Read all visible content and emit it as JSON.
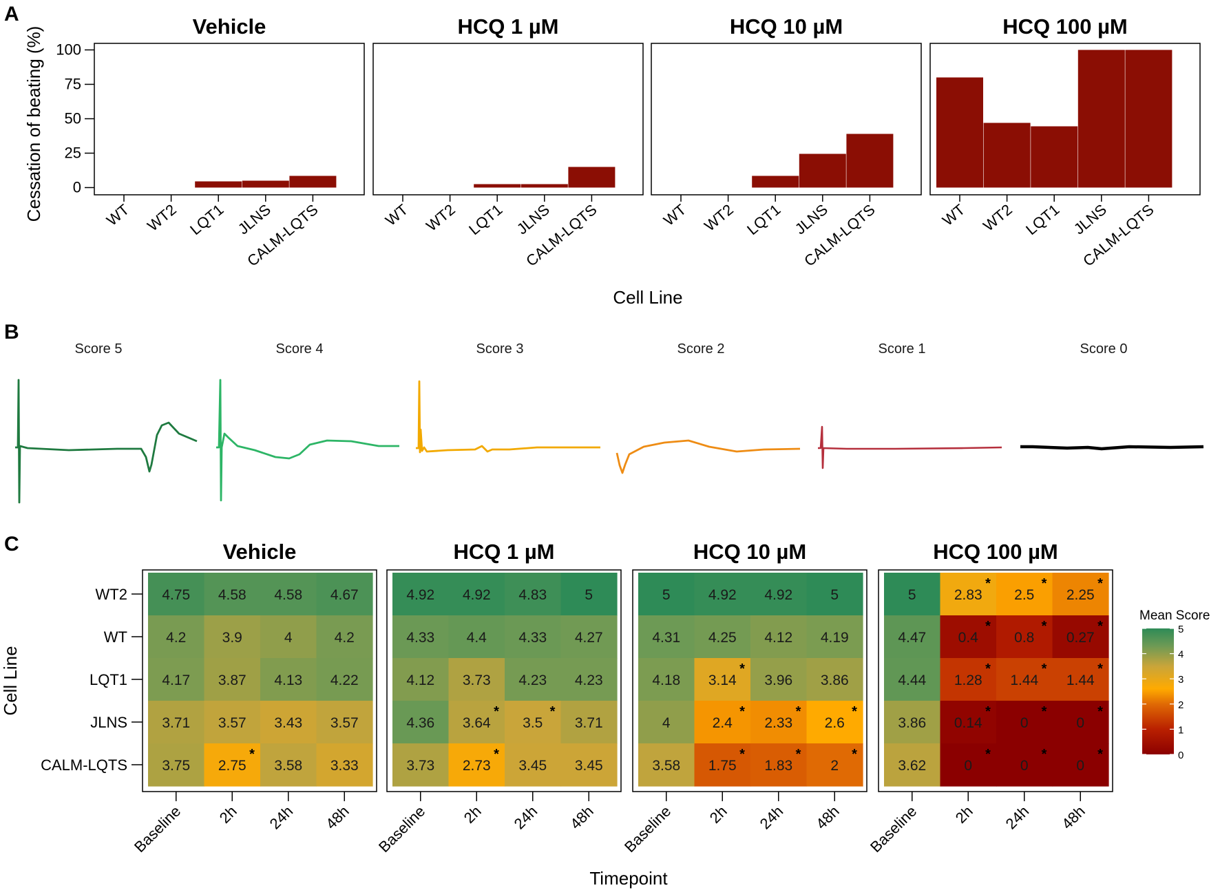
{
  "panel_labels": {
    "a": "A",
    "b": "B",
    "c": "C"
  },
  "chart_data": [
    {
      "type": "bar",
      "panel": "A",
      "facets": [
        "Vehicle",
        "HCQ 1 µM",
        "HCQ 10 µM",
        "HCQ 100 µM"
      ],
      "categories": [
        "WT",
        "WT2",
        "LQT1",
        "JLNS",
        "CALM-LQTS"
      ],
      "series": [
        {
          "name": "Vehicle",
          "values": [
            0,
            0,
            4.5,
            5,
            8.5
          ]
        },
        {
          "name": "HCQ 1 µM",
          "values": [
            0,
            0,
            2.5,
            2.5,
            15
          ]
        },
        {
          "name": "HCQ 10 µM",
          "values": [
            0,
            0,
            8.5,
            24.5,
            39
          ]
        },
        {
          "name": "HCQ 100 µM",
          "values": [
            80,
            47,
            44.5,
            100,
            100
          ]
        }
      ],
      "ylabel": "Cessation of beating (%)",
      "xlabel": "Cell Line",
      "ylim": [
        0,
        105
      ],
      "yticks": [
        0,
        25,
        50,
        75,
        100
      ],
      "bar_color": "#8B0E04"
    },
    {
      "type": "heatmap",
      "panel": "C",
      "facets": [
        "Vehicle",
        "HCQ 1 µM",
        "HCQ 10 µM",
        "HCQ 100 µM"
      ],
      "rows": [
        "WT2",
        "WT",
        "LQT1",
        "JLNS",
        "CALM-LQTS"
      ],
      "columns": [
        "Baseline",
        "2h",
        "24h",
        "48h"
      ],
      "xlabel": "Timepoint",
      "ylabel": "Cell Line",
      "legend_title": "Mean Score",
      "legend_ticks": [
        "5",
        "4",
        "3",
        "2",
        "1",
        "0"
      ],
      "value_range": [
        0,
        5
      ],
      "values": [
        [
          [
            "4.75",
            "4.58",
            "4.58",
            "4.67"
          ],
          [
            "4.2",
            "3.9",
            "4",
            "4.2"
          ],
          [
            "4.17",
            "3.87",
            "4.13",
            "4.22"
          ],
          [
            "3.71",
            "3.57",
            "3.43",
            "3.57"
          ],
          [
            "3.75",
            "2.75",
            "3.58",
            "3.33"
          ]
        ],
        [
          [
            "4.92",
            "4.92",
            "4.83",
            "5"
          ],
          [
            "4.33",
            "4.4",
            "4.33",
            "4.27"
          ],
          [
            "4.12",
            "3.73",
            "4.23",
            "4.23"
          ],
          [
            "4.36",
            "3.64",
            "3.5",
            "3.71"
          ],
          [
            "3.73",
            "2.73",
            "3.45",
            "3.45"
          ]
        ],
        [
          [
            "5",
            "4.92",
            "4.92",
            "5"
          ],
          [
            "4.31",
            "4.25",
            "4.12",
            "4.19"
          ],
          [
            "4.18",
            "3.14",
            "3.96",
            "3.86"
          ],
          [
            "4",
            "2.4",
            "2.33",
            "2.6"
          ],
          [
            "3.58",
            "1.75",
            "1.83",
            "2"
          ]
        ],
        [
          [
            "5",
            "2.83",
            "2.5",
            "2.25"
          ],
          [
            "4.47",
            "0.4",
            "0.8",
            "0.27"
          ],
          [
            "4.44",
            "1.28",
            "1.44",
            "1.44"
          ],
          [
            "3.86",
            "0.14",
            "0",
            "0"
          ],
          [
            "3.62",
            "0",
            "0",
            "0"
          ]
        ]
      ],
      "significant": [
        [
          [
            0,
            0,
            0,
            0
          ],
          [
            0,
            0,
            0,
            0
          ],
          [
            0,
            0,
            0,
            0
          ],
          [
            0,
            0,
            0,
            0
          ],
          [
            0,
            1,
            0,
            0
          ]
        ],
        [
          [
            0,
            0,
            0,
            0
          ],
          [
            0,
            0,
            0,
            0
          ],
          [
            0,
            0,
            0,
            0
          ],
          [
            0,
            1,
            1,
            0
          ],
          [
            0,
            1,
            0,
            0
          ]
        ],
        [
          [
            0,
            0,
            0,
            0
          ],
          [
            0,
            0,
            0,
            0
          ],
          [
            0,
            1,
            0,
            0
          ],
          [
            0,
            1,
            1,
            1
          ],
          [
            0,
            1,
            1,
            1
          ]
        ],
        [
          [
            0,
            1,
            1,
            1
          ],
          [
            0,
            1,
            1,
            1
          ],
          [
            0,
            1,
            1,
            1
          ],
          [
            0,
            1,
            1,
            1
          ],
          [
            0,
            1,
            1,
            1
          ]
        ]
      ],
      "significance_marker": "*",
      "colorscale": [
        "#8B0000",
        "#D55A00",
        "#FFAA00",
        "#C9A53A",
        "#6E9A55",
        "#2E8B57"
      ]
    }
  ],
  "traces": {
    "labels": [
      "Score 5",
      "Score 4",
      "Score 3",
      "Score 2",
      "Score 1",
      "Score 0"
    ],
    "colors": [
      "#1F7A40",
      "#2DB566",
      "#F2A900",
      "#EE8C14",
      "#B52F3C",
      "#000000"
    ]
  }
}
